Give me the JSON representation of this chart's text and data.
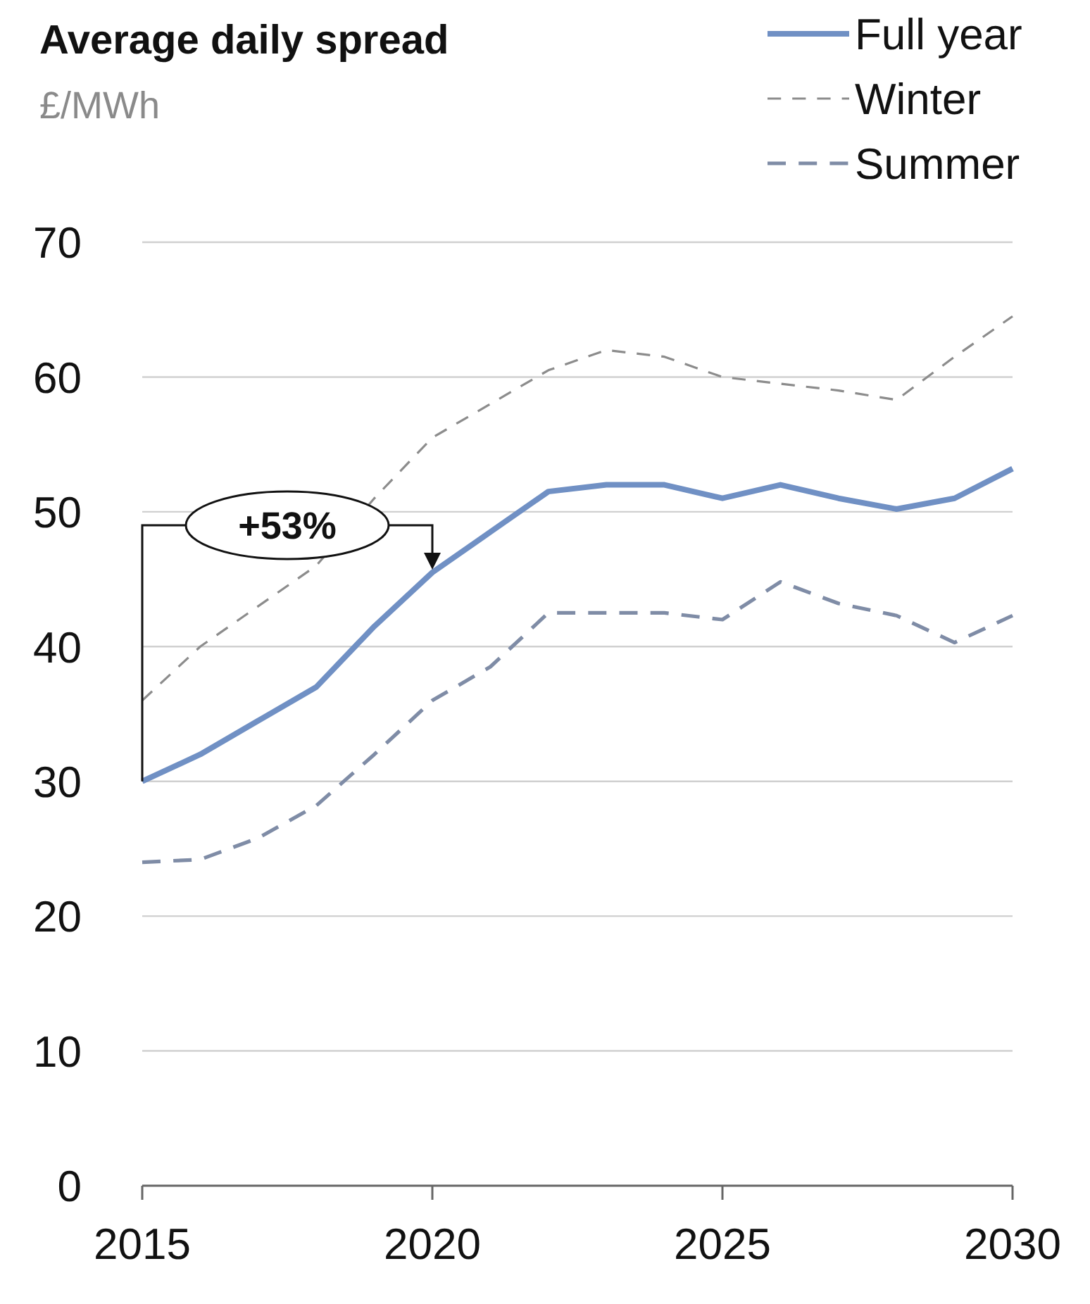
{
  "chart_data": {
    "type": "line",
    "title": "Average daily spread",
    "ylabel": "£/MWh",
    "x": [
      2015,
      2016,
      2017,
      2018,
      2019,
      2020,
      2021,
      2022,
      2023,
      2024,
      2025,
      2026,
      2027,
      2028,
      2029,
      2030
    ],
    "series": [
      {
        "name": "Full year",
        "color": "#7090c4",
        "line_style": "solid",
        "values": [
          30,
          32,
          34.5,
          37,
          41.5,
          45.5,
          48.5,
          51.5,
          52,
          52,
          51,
          52,
          51,
          50.2,
          51,
          53.2
        ]
      },
      {
        "name": "Winter",
        "color": "#8c8c8c",
        "line_style": "dotted",
        "values": [
          36,
          40,
          43,
          46,
          51,
          55.5,
          58,
          60.5,
          62,
          61.5,
          60,
          59.5,
          59,
          58.3,
          61.5,
          64.5
        ]
      },
      {
        "name": "Summer",
        "color": "#7f8ca6",
        "line_style": "dashed",
        "values": [
          24,
          24.2,
          25.8,
          28.2,
          32,
          36,
          38.5,
          42.5,
          42.5,
          42.5,
          42,
          44.8,
          43.2,
          42.3,
          40.3,
          42.3
        ]
      }
    ],
    "xlim": [
      2015,
      2030
    ],
    "xticks": [
      2015,
      2020,
      2025,
      2030
    ],
    "ylim": [
      0,
      70
    ],
    "yticks": [
      0,
      10,
      20,
      30,
      40,
      50,
      60,
      70
    ],
    "grid": "y",
    "legend": "top right",
    "marker": "none",
    "annotations": [
      {
        "text": "+53%",
        "x": 2020,
        "y": 45.5
      }
    ]
  }
}
